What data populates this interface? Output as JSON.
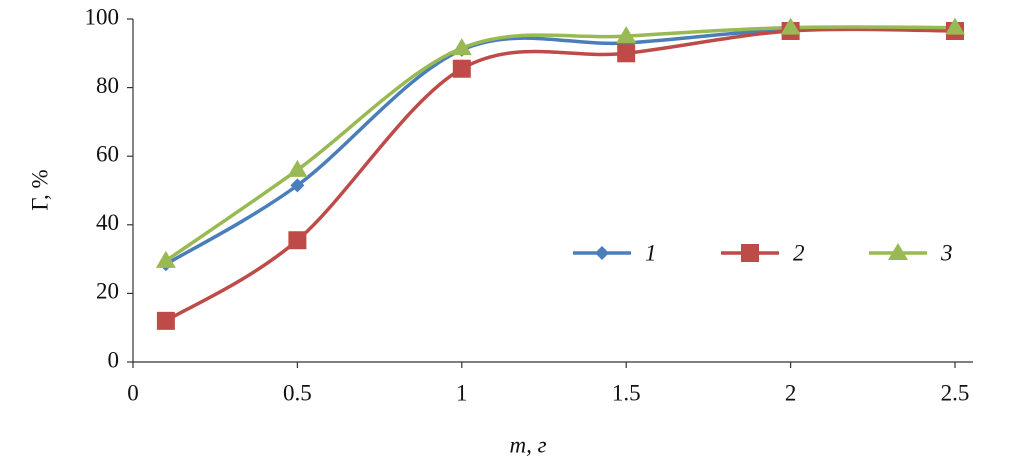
{
  "chart_data": {
    "type": "line",
    "x_label": "m, г",
    "y_label": "Г, %",
    "x": [
      0.1,
      0.5,
      1,
      1.5,
      2,
      2.5
    ],
    "series": [
      {
        "name": "1",
        "color": "#4a7ebb",
        "marker": "diamond",
        "values": [
          28.5,
          51.5,
          91,
          93,
          97,
          97
        ]
      },
      {
        "name": "2",
        "color": "#be4b48",
        "marker": "square",
        "values": [
          12,
          35.5,
          85.5,
          90,
          96.5,
          96.5
        ]
      },
      {
        "name": "3",
        "color": "#98b954",
        "marker": "triangle",
        "values": [
          29.5,
          56,
          91.5,
          95,
          97.5,
          97.5
        ]
      }
    ],
    "xlim": [
      0,
      2.5
    ],
    "xticks": [
      0,
      0.5,
      1,
      1.5,
      2,
      2.5
    ],
    "ylim": [
      0,
      100
    ],
    "yticks": [
      0,
      20,
      40,
      60,
      80,
      100
    ],
    "smooth": true,
    "grid": false
  }
}
